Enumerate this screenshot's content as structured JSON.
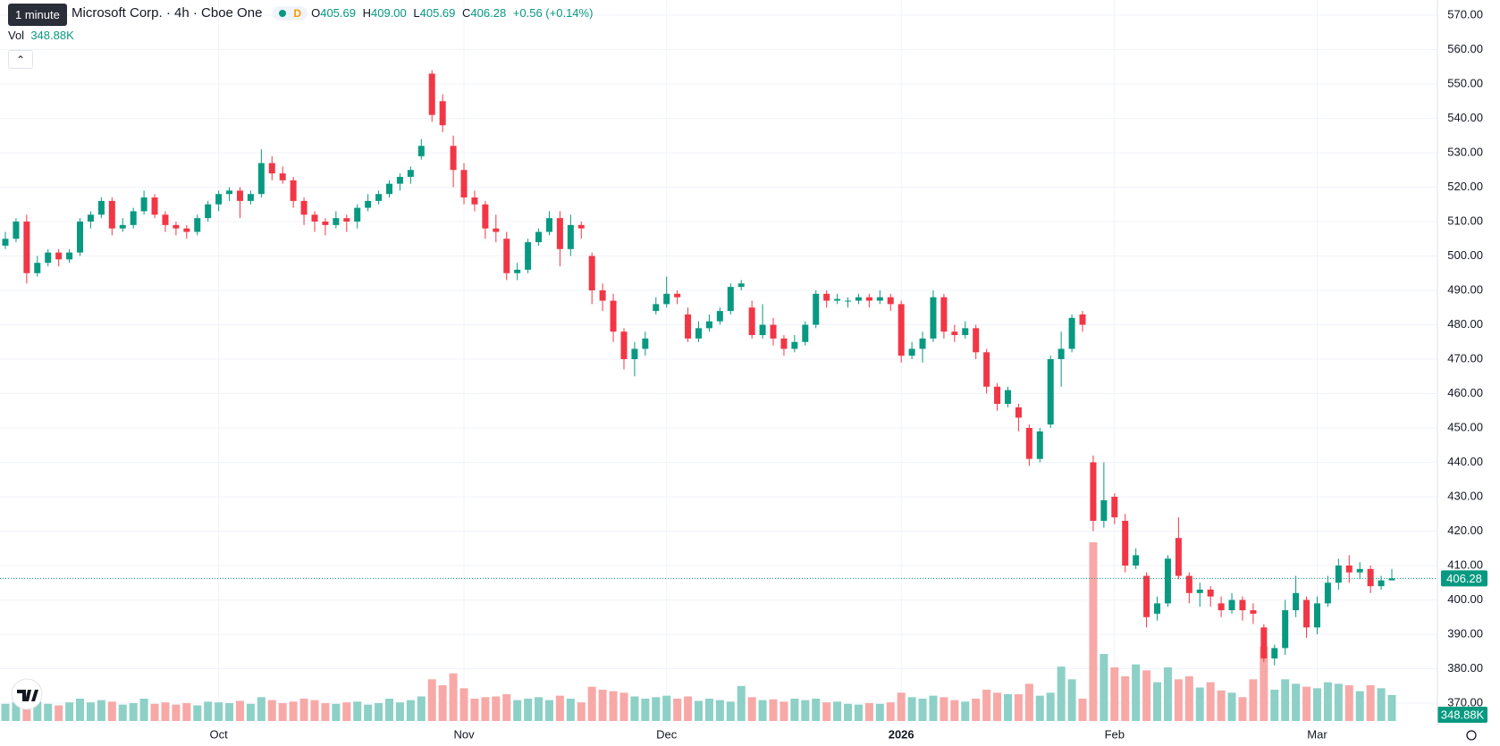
{
  "chart_data": {
    "type": "candlestick",
    "title": "Microsoft Corp. · 4h · Cboe One",
    "tooltip": "1 minute",
    "badge": "D",
    "legend": {
      "o_label": "O",
      "o": "405.69",
      "h_label": "H",
      "h": "409.00",
      "l_label": "L",
      "l": "405.69",
      "c_label": "C",
      "c": "406.28",
      "change": "+0.56 (+0.14%)",
      "vol_label": "Vol",
      "vol": "348.88K"
    },
    "up_color": "#089981",
    "down_color": "#f23645",
    "vol_up_color": "#8dd0c6",
    "vol_down_color": "#f7a9a7",
    "ylim": [
      370,
      570
    ],
    "yticks": [
      {
        "value": 370,
        "label": "370.00"
      },
      {
        "value": 380,
        "label": "380.00"
      },
      {
        "value": 390,
        "label": "390.00"
      },
      {
        "value": 400,
        "label": "400.00"
      },
      {
        "value": 410,
        "label": "410.00"
      },
      {
        "value": 420,
        "label": "420.00"
      },
      {
        "value": 430,
        "label": "430.00"
      },
      {
        "value": 440,
        "label": "440.00"
      },
      {
        "value": 450,
        "label": "450.00"
      },
      {
        "value": 460,
        "label": "460.00"
      },
      {
        "value": 470,
        "label": "470.00"
      },
      {
        "value": 480,
        "label": "480.00"
      },
      {
        "value": 490,
        "label": "490.00"
      },
      {
        "value": 500,
        "label": "500.00"
      },
      {
        "value": 510,
        "label": "510.00"
      },
      {
        "value": 520,
        "label": "520.00"
      },
      {
        "value": 530,
        "label": "530.00"
      },
      {
        "value": 540,
        "label": "540.00"
      },
      {
        "value": 550,
        "label": "550.00"
      },
      {
        "value": 560,
        "label": "560.00"
      },
      {
        "value": 570,
        "label": "570.00"
      }
    ],
    "xlim": [
      0,
      130
    ],
    "xticks": [
      {
        "value": 20,
        "label": "Oct"
      },
      {
        "value": 43,
        "label": "Nov"
      },
      {
        "value": 62,
        "label": "Dec"
      },
      {
        "value": 84,
        "label": "2026"
      },
      {
        "value": 104,
        "label": "Feb"
      },
      {
        "value": 123,
        "label": "Mar"
      }
    ],
    "vlim": [
      0,
      2700
    ],
    "grid": true,
    "ohlc": [
      [
        503,
        507,
        502,
        505
      ],
      [
        505,
        511,
        504,
        510
      ],
      [
        510,
        512,
        492,
        495
      ],
      [
        495,
        500,
        494,
        498
      ],
      [
        498,
        502,
        497,
        501
      ],
      [
        501,
        502,
        497,
        499
      ],
      [
        499,
        502,
        498,
        501
      ],
      [
        501,
        511,
        500,
        510
      ],
      [
        510,
        513,
        508,
        512
      ],
      [
        512,
        517,
        511,
        516
      ],
      [
        516,
        517,
        506,
        508
      ],
      [
        508,
        511,
        507,
        509
      ],
      [
        509,
        514,
        508,
        513
      ],
      [
        513,
        519,
        512,
        517
      ],
      [
        517,
        518,
        511,
        512
      ],
      [
        512,
        513,
        507,
        509
      ],
      [
        509,
        510,
        506,
        508
      ],
      [
        508,
        509,
        505,
        507
      ],
      [
        507,
        512,
        506,
        511
      ],
      [
        511,
        516,
        510,
        515
      ],
      [
        515,
        519,
        513,
        518
      ],
      [
        518,
        520,
        516,
        519
      ],
      [
        519,
        520,
        511,
        516
      ],
      [
        516,
        519,
        515,
        518
      ],
      [
        518,
        531,
        517,
        527
      ],
      [
        527,
        529,
        522,
        524
      ],
      [
        524,
        526,
        521,
        522
      ],
      [
        522,
        523,
        514,
        516
      ],
      [
        516,
        517,
        509,
        512
      ],
      [
        512,
        513,
        507,
        510
      ],
      [
        510,
        511,
        506,
        509
      ],
      [
        509,
        513,
        508,
        511
      ],
      [
        511,
        512,
        507,
        510
      ],
      [
        510,
        515,
        508,
        514
      ],
      [
        514,
        518,
        513,
        516
      ],
      [
        516,
        519,
        515,
        518
      ],
      [
        518,
        522,
        517,
        521
      ],
      [
        521,
        524,
        519,
        523
      ],
      [
        523,
        526,
        521,
        525
      ],
      [
        529,
        534,
        528,
        532
      ],
      [
        553,
        554,
        539,
        541
      ],
      [
        545,
        547,
        536,
        538
      ],
      [
        532,
        535,
        520,
        525
      ],
      [
        525,
        527,
        515,
        517
      ],
      [
        517,
        519,
        513,
        515
      ],
      [
        515,
        516,
        505,
        508
      ],
      [
        508,
        512,
        504,
        507
      ],
      [
        505,
        507,
        493,
        495
      ],
      [
        495,
        498,
        493,
        496
      ],
      [
        496,
        505,
        495,
        504
      ],
      [
        504,
        508,
        503,
        507
      ],
      [
        507,
        513,
        506,
        511
      ],
      [
        511,
        513,
        497,
        502
      ],
      [
        502,
        512,
        500,
        509
      ],
      [
        509,
        510,
        505,
        508
      ],
      [
        500,
        501,
        486,
        490
      ],
      [
        490,
        492,
        484,
        487
      ],
      [
        487,
        489,
        475,
        478
      ],
      [
        478,
        479,
        467,
        470
      ],
      [
        470,
        475,
        465,
        473
      ],
      [
        473,
        478,
        471,
        476
      ],
      [
        484,
        488,
        483,
        486
      ],
      [
        486,
        494,
        485,
        489
      ],
      [
        489,
        490,
        486,
        488
      ],
      [
        483,
        485,
        475,
        476
      ],
      [
        476,
        481,
        475,
        479
      ],
      [
        479,
        483,
        478,
        481
      ],
      [
        481,
        485,
        480,
        484
      ],
      [
        484,
        492,
        483,
        491
      ],
      [
        491,
        493,
        490,
        492
      ],
      [
        485,
        487,
        476,
        477
      ],
      [
        477,
        486,
        476,
        480
      ],
      [
        480,
        482,
        474,
        476
      ],
      [
        476,
        477,
        471,
        473
      ],
      [
        473,
        477,
        472,
        475
      ],
      [
        475,
        481,
        474,
        480
      ],
      [
        480,
        490,
        479,
        489
      ],
      [
        489,
        490,
        485,
        487
      ],
      [
        487,
        489,
        486,
        487.5
      ],
      [
        487,
        488,
        485,
        487
      ],
      [
        487,
        489,
        486,
        488
      ],
      [
        488,
        489,
        485,
        487
      ],
      [
        487,
        490,
        486,
        488
      ],
      [
        488,
        489,
        484,
        486
      ],
      [
        486,
        487,
        469,
        471
      ],
      [
        471,
        475,
        470,
        473
      ],
      [
        473,
        478,
        469,
        476
      ],
      [
        476,
        490,
        475,
        488
      ],
      [
        488,
        489,
        476,
        478
      ],
      [
        478,
        480,
        475,
        477
      ],
      [
        477,
        481,
        476,
        479
      ],
      [
        479,
        480,
        470,
        472
      ],
      [
        472,
        473,
        460,
        462
      ],
      [
        462,
        463,
        455,
        457
      ],
      [
        457,
        462,
        456,
        461
      ],
      [
        456,
        457,
        449,
        453
      ],
      [
        450,
        451,
        439,
        441
      ],
      [
        441,
        450,
        440,
        449
      ],
      [
        451,
        471,
        450,
        470
      ],
      [
        470,
        478,
        462,
        473
      ],
      [
        473,
        483,
        472,
        482
      ],
      [
        483,
        484,
        478,
        480
      ],
      [
        440,
        442,
        420,
        423
      ],
      [
        423,
        440,
        421,
        429
      ],
      [
        430,
        431,
        422,
        424
      ],
      [
        423,
        425,
        408,
        410
      ],
      [
        410,
        415,
        409,
        413
      ],
      [
        407,
        408,
        392,
        395
      ],
      [
        396,
        401,
        394,
        399
      ],
      [
        399,
        413,
        398,
        412
      ],
      [
        418,
        424,
        406,
        407
      ],
      [
        407,
        408,
        399,
        402
      ],
      [
        402,
        405,
        398,
        403
      ],
      [
        403,
        404,
        398,
        401
      ],
      [
        399,
        401,
        395,
        397
      ],
      [
        397,
        402,
        396,
        400
      ],
      [
        400,
        401,
        394,
        397
      ],
      [
        397,
        399,
        393,
        396
      ],
      [
        392,
        393,
        382,
        383
      ],
      [
        383,
        387,
        381,
        386
      ],
      [
        386,
        400,
        384,
        397
      ],
      [
        397,
        407,
        395,
        402
      ],
      [
        400,
        401,
        389,
        392
      ],
      [
        392,
        401,
        390,
        399
      ],
      [
        399,
        407,
        398,
        405
      ],
      [
        405,
        412,
        403,
        410
      ],
      [
        410,
        413,
        405,
        408
      ],
      [
        408,
        411,
        406,
        409
      ],
      [
        409,
        410,
        402,
        404
      ],
      [
        404,
        407,
        403,
        405.69
      ],
      [
        405.69,
        409,
        405.69,
        406.28
      ]
    ],
    "volume": [
      230,
      250,
      420,
      260,
      230,
      210,
      250,
      300,
      250,
      280,
      260,
      220,
      240,
      300,
      230,
      250,
      220,
      240,
      210,
      260,
      250,
      240,
      270,
      230,
      320,
      280,
      240,
      260,
      300,
      280,
      240,
      230,
      250,
      260,
      220,
      240,
      300,
      250,
      280,
      330,
      560,
      480,
      640,
      440,
      300,
      320,
      330,
      360,
      280,
      300,
      320,
      280,
      340,
      300,
      250,
      460,
      420,
      400,
      380,
      330,
      300,
      320,
      340,
      300,
      330,
      270,
      300,
      280,
      260,
      470,
      320,
      280,
      290,
      260,
      300,
      280,
      300,
      250,
      260,
      230,
      220,
      240,
      230,
      250,
      380,
      320,
      300,
      340,
      320,
      280,
      260,
      300,
      420,
      380,
      360,
      360,
      500,
      340,
      380,
      730,
      560,
      300,
      2400,
      900,
      720,
      600,
      760,
      680,
      520,
      720,
      560,
      600,
      450,
      520,
      410,
      380,
      320,
      560,
      1000,
      420,
      560,
      500,
      460,
      440,
      520,
      500,
      480,
      400,
      480,
      440,
      348.88
    ]
  }
}
